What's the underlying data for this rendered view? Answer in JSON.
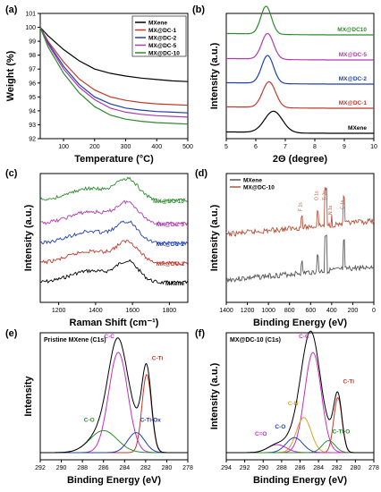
{
  "chart_data": [
    {
      "panel": "(a)",
      "type": "line",
      "xlabel": "Temperature (°C)",
      "ylabel": "Weight (%)",
      "xlim": [
        25,
        500
      ],
      "ylim": [
        92,
        101
      ],
      "xticks": [
        "100",
        "200",
        "300",
        "400",
        "500"
      ],
      "yticks": [
        "92",
        "93",
        "94",
        "95",
        "96",
        "97",
        "98",
        "99",
        "100",
        "101"
      ],
      "legend_position": "top-right",
      "series": [
        {
          "name": "MXene",
          "color": "#000000",
          "x": [
            25,
            50,
            100,
            150,
            200,
            250,
            300,
            350,
            400,
            450,
            500
          ],
          "y": [
            100,
            99.4,
            98.4,
            97.6,
            97.0,
            96.7,
            96.5,
            96.35,
            96.25,
            96.15,
            96.1
          ]
        },
        {
          "name": "MX@DC-1",
          "color": "#c0392b",
          "x": [
            25,
            50,
            100,
            150,
            200,
            250,
            300,
            350,
            400,
            450,
            500
          ],
          "y": [
            100,
            99.0,
            97.5,
            96.3,
            95.5,
            95.0,
            94.75,
            94.6,
            94.5,
            94.45,
            94.4
          ]
        },
        {
          "name": "MX@DC-2",
          "color": "#1f3fb4",
          "x": [
            25,
            50,
            100,
            150,
            200,
            250,
            300,
            350,
            400,
            450,
            500
          ],
          "y": [
            100,
            98.9,
            97.2,
            95.9,
            95.0,
            94.5,
            94.2,
            94.05,
            93.95,
            93.9,
            93.85
          ]
        },
        {
          "name": "MX@DC-5",
          "color": "#b03ab0",
          "x": [
            25,
            50,
            100,
            150,
            200,
            250,
            300,
            350,
            400,
            450,
            500
          ],
          "y": [
            100,
            98.8,
            97.0,
            95.7,
            94.8,
            94.2,
            93.9,
            93.75,
            93.65,
            93.6,
            93.55
          ]
        },
        {
          "name": "MX@DC-10",
          "color": "#2e8b2e",
          "x": [
            25,
            50,
            100,
            150,
            200,
            250,
            300,
            350,
            400,
            450,
            500
          ],
          "y": [
            100,
            98.6,
            96.7,
            95.3,
            94.3,
            93.7,
            93.4,
            93.25,
            93.15,
            93.1,
            93.05
          ]
        }
      ]
    },
    {
      "panel": "(b)",
      "type": "line",
      "xlabel": "2Θ (degree)",
      "ylabel": "Intensity (a.u.)",
      "xlim": [
        5,
        10
      ],
      "xticks": [
        "5",
        "6",
        "7",
        "8",
        "9",
        "10"
      ],
      "series": [
        {
          "name": "MXene",
          "color": "#000000",
          "center": 6.6,
          "height": 1.0,
          "width": 0.3
        },
        {
          "name": "MX@DC-1",
          "color": "#c0392b",
          "center": 6.45,
          "height": 1.2,
          "width": 0.22
        },
        {
          "name": "MX@DC-2",
          "color": "#1f3fb4",
          "center": 6.4,
          "height": 1.3,
          "width": 0.2
        },
        {
          "name": "MX@DC-5",
          "color": "#b03ab0",
          "center": 6.4,
          "height": 1.2,
          "width": 0.2
        },
        {
          "name": "MX@DC10",
          "color": "#2e8b2e",
          "center": 6.35,
          "height": 1.3,
          "width": 0.18
        }
      ]
    },
    {
      "panel": "(c)",
      "type": "line",
      "xlabel": "Raman Shift (cm⁻¹)",
      "ylabel": "Intensity (a.u.)",
      "xlim": [
        1100,
        1900
      ],
      "xticks": [
        "1200",
        "1400",
        "1600",
        "1800"
      ],
      "series": [
        {
          "name": "MXene",
          "color": "#000000"
        },
        {
          "name": "MX@DC-1",
          "color": "#c0392b"
        },
        {
          "name": "MX@DC-2",
          "color": "#1f3fb4"
        },
        {
          "name": "MX@DC-5",
          "color": "#b03ab0"
        },
        {
          "name": "MX@DC-10",
          "color": "#2e8b2e"
        }
      ]
    },
    {
      "panel": "(d)",
      "type": "line",
      "xlabel": "Binding Energy (eV)",
      "ylabel": "Intensity (a.u.)",
      "xlim": [
        1400,
        0
      ],
      "xticks": [
        "1400",
        "1200",
        "1000",
        "800",
        "600",
        "400",
        "200",
        "0"
      ],
      "legend_position": "top-left",
      "series": [
        {
          "name": "MXene",
          "color": "#555555"
        },
        {
          "name": "MX@DC-10",
          "color": "#b5533c"
        }
      ],
      "annotations": [
        "F 1s",
        "O 1s",
        "Ti 2p",
        "N 1s",
        "C 1s"
      ]
    },
    {
      "panel": "(e)",
      "type": "line",
      "title": "Pristine MXene (C1s)",
      "xlabel": "Binding Energy (eV)",
      "ylabel": "Intensity",
      "xlim": [
        292,
        278
      ],
      "xticks": [
        "292",
        "290",
        "288",
        "286",
        "284",
        "282",
        "280",
        "278"
      ],
      "peaks": [
        {
          "name": "C-C",
          "color": "#c030c0",
          "center": 284.6,
          "height": 1.0,
          "width": 0.9
        },
        {
          "name": "C-Ti",
          "color": "#c0392b",
          "center": 281.9,
          "height": 0.78,
          "width": 0.45
        },
        {
          "name": "C-O",
          "color": "#2e8b2e",
          "center": 286.0,
          "height": 0.22,
          "width": 1.3
        },
        {
          "name": "C-Ti-Ox",
          "color": "#1f3fb4",
          "center": 282.9,
          "height": 0.2,
          "width": 0.8
        }
      ]
    },
    {
      "panel": "(f)",
      "type": "line",
      "title": "MX@DC-10 (C1s)",
      "xlabel": "Binding Energy (eV)",
      "ylabel": "Intensity (a.u.)",
      "xlim": [
        294,
        278
      ],
      "xticks": [
        "294",
        "292",
        "290",
        "288",
        "286",
        "284",
        "282",
        "280",
        "278"
      ],
      "peaks": [
        {
          "name": "C-C",
          "color": "#c030c0",
          "center": 284.6,
          "height": 1.0,
          "width": 0.9
        },
        {
          "name": "C-Ti",
          "color": "#c0392b",
          "center": 281.9,
          "height": 0.55,
          "width": 0.45
        },
        {
          "name": "C-N",
          "color": "#e0a020",
          "center": 285.6,
          "height": 0.35,
          "width": 0.8
        },
        {
          "name": "C-O",
          "color": "#1f3fb4",
          "center": 286.6,
          "height": 0.15,
          "width": 0.9
        },
        {
          "name": "C=O",
          "color": "#c030c0",
          "center": 288.5,
          "height": 0.08,
          "width": 1.0
        },
        {
          "name": "C-Ti-O",
          "color": "#2e8b2e",
          "center": 282.9,
          "height": 0.12,
          "width": 0.7
        }
      ]
    }
  ]
}
